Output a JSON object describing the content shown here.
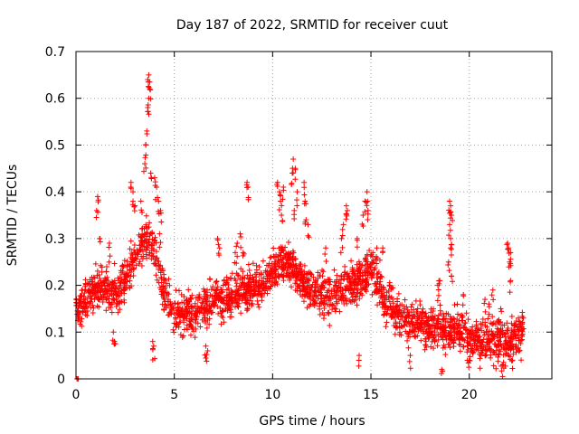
{
  "chart_data": {
    "type": "scatter",
    "title": "Day 187 of 2022, SRMTID for receiver cuut",
    "xlabel": "GPS time / hours",
    "ylabel": "SRMTID / TECUs",
    "xlim": [
      0,
      24.2
    ],
    "ylim": [
      0,
      0.7
    ],
    "xticks": [
      0,
      5,
      10,
      15,
      20
    ],
    "yticks": [
      0,
      0.1,
      0.2,
      0.3,
      0.4,
      0.5,
      0.6,
      0.7
    ],
    "grid": true,
    "marker": "+",
    "color": "#ff0000",
    "baseline": [
      [
        0,
        0.15
      ],
      [
        0.5,
        0.17
      ],
      [
        1,
        0.19
      ],
      [
        1.5,
        0.19
      ],
      [
        2,
        0.19
      ],
      [
        2.5,
        0.21
      ],
      [
        3,
        0.26
      ],
      [
        3.5,
        0.3
      ],
      [
        4,
        0.28
      ],
      [
        4.5,
        0.18
      ],
      [
        5,
        0.14
      ],
      [
        5.5,
        0.14
      ],
      [
        6,
        0.13
      ],
      [
        6.5,
        0.15
      ],
      [
        7,
        0.17
      ],
      [
        7.5,
        0.17
      ],
      [
        8,
        0.18
      ],
      [
        8.5,
        0.19
      ],
      [
        9,
        0.2
      ],
      [
        9.5,
        0.2
      ],
      [
        10,
        0.23
      ],
      [
        10.5,
        0.25
      ],
      [
        11,
        0.24
      ],
      [
        11.5,
        0.21
      ],
      [
        12,
        0.19
      ],
      [
        12.5,
        0.18
      ],
      [
        13,
        0.17
      ],
      [
        13.5,
        0.19
      ],
      [
        14,
        0.2
      ],
      [
        14.5,
        0.22
      ],
      [
        15,
        0.23
      ],
      [
        15.5,
        0.19
      ],
      [
        16,
        0.15
      ],
      [
        16.5,
        0.13
      ],
      [
        17,
        0.12
      ],
      [
        17.5,
        0.12
      ],
      [
        18,
        0.11
      ],
      [
        18.5,
        0.11
      ],
      [
        19,
        0.1
      ],
      [
        19.5,
        0.11
      ],
      [
        20,
        0.08
      ],
      [
        20.5,
        0.09
      ],
      [
        21,
        0.08
      ],
      [
        21.5,
        0.08
      ],
      [
        22,
        0.07
      ],
      [
        22.5,
        0.09
      ],
      [
        22.7,
        0.1
      ]
    ],
    "spikes": [
      [
        0.05,
        0.0
      ],
      [
        0.1,
        0.0
      ],
      [
        1.1,
        0.39
      ],
      [
        1.05,
        0.36
      ],
      [
        1.2,
        0.3
      ],
      [
        1.7,
        0.29
      ],
      [
        2.8,
        0.42
      ],
      [
        2.9,
        0.4
      ],
      [
        3.0,
        0.37
      ],
      [
        3.3,
        0.38
      ],
      [
        3.5,
        0.46
      ],
      [
        3.55,
        0.5
      ],
      [
        3.6,
        0.53
      ],
      [
        3.65,
        0.58
      ],
      [
        3.7,
        0.6
      ],
      [
        3.65,
        0.64
      ],
      [
        3.7,
        0.65
      ],
      [
        3.75,
        0.62
      ],
      [
        3.8,
        0.44
      ],
      [
        4.0,
        0.43
      ],
      [
        4.1,
        0.41
      ],
      [
        4.2,
        0.38
      ],
      [
        4.3,
        0.36
      ],
      [
        4.25,
        0.31
      ],
      [
        3.9,
        0.08
      ],
      [
        3.95,
        0.07
      ],
      [
        1.9,
        0.1
      ],
      [
        1.95,
        0.08
      ],
      [
        6.6,
        0.07
      ],
      [
        6.7,
        0.06
      ],
      [
        7.2,
        0.3
      ],
      [
        7.3,
        0.28
      ],
      [
        8.1,
        0.27
      ],
      [
        8.2,
        0.29
      ],
      [
        8.35,
        0.31
      ],
      [
        8.7,
        0.42
      ],
      [
        8.75,
        0.41
      ],
      [
        8.5,
        0.27
      ],
      [
        10.25,
        0.42
      ],
      [
        10.35,
        0.4
      ],
      [
        10.4,
        0.38
      ],
      [
        10.45,
        0.35
      ],
      [
        10.55,
        0.41
      ],
      [
        11.0,
        0.44
      ],
      [
        11.05,
        0.47
      ],
      [
        11.15,
        0.45
      ],
      [
        11.25,
        0.4
      ],
      [
        11.6,
        0.42
      ],
      [
        11.65,
        0.38
      ],
      [
        11.7,
        0.34
      ],
      [
        11.8,
        0.33
      ],
      [
        11.1,
        0.36
      ],
      [
        12.7,
        0.28
      ],
      [
        13.5,
        0.3
      ],
      [
        13.6,
        0.33
      ],
      [
        13.75,
        0.37
      ],
      [
        13.8,
        0.36
      ],
      [
        14.3,
        0.3
      ],
      [
        14.6,
        0.35
      ],
      [
        14.7,
        0.38
      ],
      [
        14.8,
        0.4
      ],
      [
        14.85,
        0.36
      ],
      [
        15.3,
        0.28
      ],
      [
        15.6,
        0.28
      ],
      [
        14.4,
        0.05
      ],
      [
        15.1,
        0.27
      ],
      [
        17.0,
        0.05
      ],
      [
        17.8,
        0.08
      ],
      [
        18.6,
        0.02
      ],
      [
        18.5,
        0.21
      ],
      [
        18.4,
        0.2
      ],
      [
        19.0,
        0.38
      ],
      [
        19.05,
        0.37
      ],
      [
        19.1,
        0.35
      ],
      [
        19.0,
        0.33
      ],
      [
        19.05,
        0.3
      ],
      [
        19.05,
        0.28
      ],
      [
        18.95,
        0.25
      ],
      [
        19.1,
        0.22
      ],
      [
        19.7,
        0.18
      ],
      [
        20.0,
        0.04
      ],
      [
        20.6,
        0.05
      ],
      [
        20.8,
        0.17
      ],
      [
        21.0,
        0.16
      ],
      [
        21.2,
        0.19
      ],
      [
        21.7,
        0.03
      ],
      [
        21.95,
        0.29
      ],
      [
        22.0,
        0.28
      ],
      [
        22.1,
        0.27
      ],
      [
        22.05,
        0.25
      ],
      [
        22.1,
        0.21
      ],
      [
        22.2,
        0.04
      ],
      [
        21.6,
        0.15
      ],
      [
        22.5,
        0.13
      ],
      [
        22.7,
        0.12
      ],
      [
        22.75,
        0.13
      ]
    ]
  }
}
